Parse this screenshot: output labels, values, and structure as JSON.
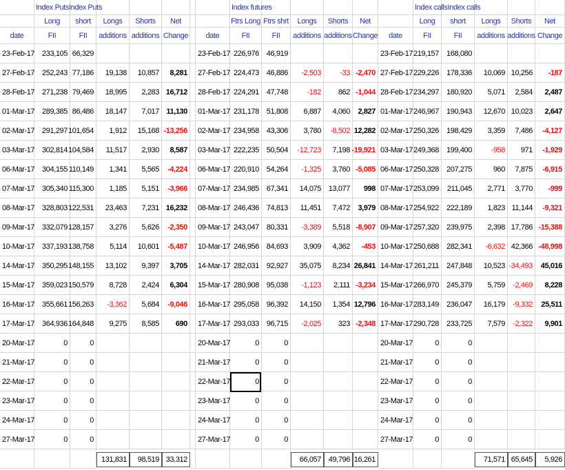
{
  "blocks": [
    {
      "title": "Index PutsIndex Puts",
      "columns": [
        [
          "date"
        ],
        [
          "Long",
          "FII"
        ],
        [
          "short",
          "FII"
        ],
        [
          "Longs",
          "additions"
        ],
        [
          "Shorts",
          "additions"
        ],
        [
          "Net",
          "Change"
        ]
      ],
      "rows": [
        [
          "23-Feb-17",
          "233,105",
          "66,329"
        ],
        [
          "27-Feb-17",
          "252,243",
          "77,186",
          "19,138",
          "10,857",
          "8,281"
        ],
        [
          "28-Feb-17",
          "271,238",
          "79,469",
          "18,995",
          "2,283",
          "16,712"
        ],
        [
          "01-Mar-17",
          "289,385",
          "86,486",
          "18,147",
          "7,017",
          "11,130"
        ],
        [
          "02-Mar-17",
          "291,297",
          "101,654",
          "1,912",
          "15,168",
          "-13,256"
        ],
        [
          "03-Mar-17",
          "302,814",
          "104,584",
          "11,517",
          "2,930",
          "8,587"
        ],
        [
          "06-Mar-17",
          "304,155",
          "110,149",
          "1,341",
          "5,565",
          "-4,224"
        ],
        [
          "07-Mar-17",
          "305,340",
          "115,300",
          "1,185",
          "5,151",
          "-3,966"
        ],
        [
          "08-Mar-17",
          "328,803",
          "122,531",
          "23,463",
          "7,231",
          "16,232"
        ],
        [
          "09-Mar-17",
          "332,079",
          "128,157",
          "3,276",
          "5,626",
          "-2,350"
        ],
        [
          "10-Mar-17",
          "337,193",
          "138,758",
          "5,114",
          "10,601",
          "-5,487"
        ],
        [
          "14-Mar-17",
          "350,295",
          "148,155",
          "13,102",
          "9,397",
          "3,705"
        ],
        [
          "15-Mar-17",
          "359,023",
          "150,579",
          "8,728",
          "2,424",
          "6,304"
        ],
        [
          "16-Mar-17",
          "355,661",
          "156,263",
          "-3,362",
          "5,684",
          "-9,046"
        ],
        [
          "17-Mar-17",
          "364,936",
          "164,848",
          "9,275",
          "8,585",
          "690"
        ],
        [
          "20-Mar-17",
          "0",
          "0"
        ],
        [
          "21-Mar-17",
          "0",
          "0"
        ],
        [
          "22-Mar-17",
          "0",
          "0"
        ],
        [
          "23-Mar-17",
          "0",
          "0"
        ],
        [
          "24-Mar-17",
          "0",
          "0"
        ],
        [
          "27-Mar-17",
          "0",
          "0"
        ]
      ],
      "totals": [
        "131,831",
        "98,519",
        "33,312"
      ]
    },
    {
      "title": "Index futures",
      "columns": [
        [
          "date"
        ],
        [
          "Ftrs Long",
          "FII"
        ],
        [
          "Ftrs shrt",
          "FII"
        ],
        [
          "Longs",
          "additions"
        ],
        [
          "Shorts",
          "additions"
        ],
        [
          "Net",
          "Change"
        ]
      ],
      "rows": [
        [
          "23-Feb-17",
          "226,976",
          "46,919"
        ],
        [
          "27-Feb-17",
          "224,473",
          "46,886",
          "-2,503",
          "-33",
          "-2,470"
        ],
        [
          "28-Feb-17",
          "224,291",
          "47,748",
          "-182",
          "862",
          "-1,044"
        ],
        [
          "01-Mar-17",
          "231,178",
          "51,808",
          "6,887",
          "4,060",
          "2,827"
        ],
        [
          "02-Mar-17",
          "234,958",
          "43,306",
          "3,780",
          "-8,502",
          "12,282"
        ],
        [
          "03-Mar-17",
          "222,235",
          "50,504",
          "-12,723",
          "7,198",
          "-19,921"
        ],
        [
          "06-Mar-17",
          "220,910",
          "54,264",
          "-1,325",
          "3,760",
          "-5,085"
        ],
        [
          "07-Mar-17",
          "234,985",
          "67,341",
          "14,075",
          "13,077",
          "998"
        ],
        [
          "08-Mar-17",
          "246,436",
          "74,813",
          "11,451",
          "7,472",
          "3,979"
        ],
        [
          "09-Mar-17",
          "243,047",
          "80,331",
          "-3,389",
          "5,518",
          "-8,907"
        ],
        [
          "10-Mar-17",
          "246,956",
          "84,693",
          "3,909",
          "4,362",
          "-453"
        ],
        [
          "14-Mar-17",
          "282,031",
          "92,927",
          "35,075",
          "8,234",
          "26,841"
        ],
        [
          "15-Mar-17",
          "280,908",
          "95,038",
          "-1,123",
          "2,111",
          "-3,234"
        ],
        [
          "16-Mar-17",
          "295,058",
          "96,392",
          "14,150",
          "1,354",
          "12,796"
        ],
        [
          "17-Mar-17",
          "293,033",
          "96,715",
          "-2,025",
          "323",
          "-2,348"
        ],
        [
          "20-Mar-17",
          "0",
          "0"
        ],
        [
          "21-Mar-17",
          "0",
          "0"
        ],
        [
          "22-Mar-17",
          "0",
          "0"
        ],
        [
          "23-Mar-17",
          "0",
          "0"
        ],
        [
          "24-Mar-17",
          "0",
          "0"
        ],
        [
          "27-Mar-17",
          "0",
          "0"
        ]
      ],
      "totals": [
        "66,057",
        "49,796",
        "16,261"
      ]
    },
    {
      "title": "Index callsIndex calls",
      "columns": [
        [
          "date"
        ],
        [
          "Long",
          "FII"
        ],
        [
          "short",
          "FII"
        ],
        [
          "Longs",
          "additions"
        ],
        [
          "Shorts",
          "additions"
        ],
        [
          "Net",
          "Change"
        ]
      ],
      "rows": [
        [
          "23-Feb-17",
          "219,157",
          "168,080"
        ],
        [
          "27-Feb-17",
          "229,226",
          "178,336",
          "10,069",
          "10,256",
          "-187"
        ],
        [
          "28-Feb-17",
          "234,297",
          "180,920",
          "5,071",
          "2,584",
          "2,487"
        ],
        [
          "01-Mar-17",
          "246,967",
          "190,943",
          "12,670",
          "10,023",
          "2,647"
        ],
        [
          "02-Mar-17",
          "250,326",
          "198,429",
          "3,359",
          "7,486",
          "-4,127"
        ],
        [
          "03-Mar-17",
          "249,368",
          "199,400",
          "-958",
          "971",
          "-1,929"
        ],
        [
          "06-Mar-17",
          "250,328",
          "207,275",
          "960",
          "7,875",
          "-6,915"
        ],
        [
          "07-Mar-17",
          "253,099",
          "211,045",
          "2,771",
          "3,770",
          "-999"
        ],
        [
          "08-Mar-17",
          "254,922",
          "222,189",
          "1,823",
          "11,144",
          "-9,321"
        ],
        [
          "09-Mar-17",
          "257,320",
          "239,975",
          "2,398",
          "17,786",
          "-15,388"
        ],
        [
          "10-Mar-17",
          "250,688",
          "282,341",
          "-6,632",
          "42,366",
          "-48,998"
        ],
        [
          "14-Mar-17",
          "261,211",
          "247,848",
          "10,523",
          "-34,493",
          "45,016"
        ],
        [
          "15-Mar-17",
          "266,970",
          "245,379",
          "5,759",
          "-2,469",
          "8,228"
        ],
        [
          "16-Mar-17",
          "283,149",
          "236,047",
          "16,179",
          "-9,332",
          "25,511"
        ],
        [
          "17-Mar-17",
          "290,728",
          "233,725",
          "7,579",
          "-2,322",
          "9,901"
        ],
        [
          "20-Mar-17",
          "0",
          "0"
        ],
        [
          "21-Mar-17",
          "0",
          "0"
        ],
        [
          "22-Mar-17",
          "0",
          "0"
        ],
        [
          "23-Mar-17",
          "0",
          "0"
        ],
        [
          "24-Mar-17",
          "0",
          "0"
        ],
        [
          "27-Mar-17",
          "0",
          "0"
        ]
      ],
      "totals": [
        "71,571",
        "65,645",
        "5,926"
      ]
    }
  ]
}
